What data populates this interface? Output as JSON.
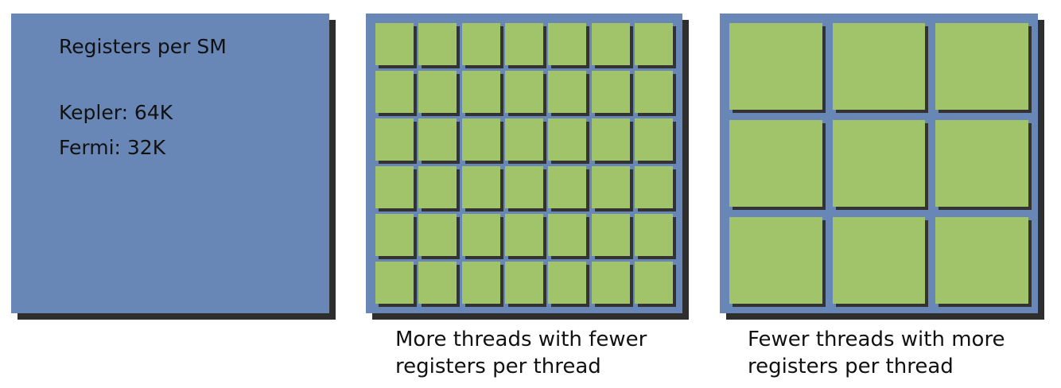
{
  "register_file": {
    "title": "Registers per SM",
    "kepler": "Kepler: 64K",
    "fermi": "Fermi: 32K"
  },
  "many_threads": {
    "rows": 6,
    "cols": 7,
    "caption_line1": "More threads with fewer",
    "caption_line2": "registers per thread"
  },
  "few_threads": {
    "rows": 3,
    "cols": 3,
    "caption_line1": "Fewer threads with more",
    "caption_line2": "registers per thread"
  },
  "colors": {
    "panel": "#6887b6",
    "thread_block": "#a1c46a",
    "shadow": "#2e2e2e"
  }
}
